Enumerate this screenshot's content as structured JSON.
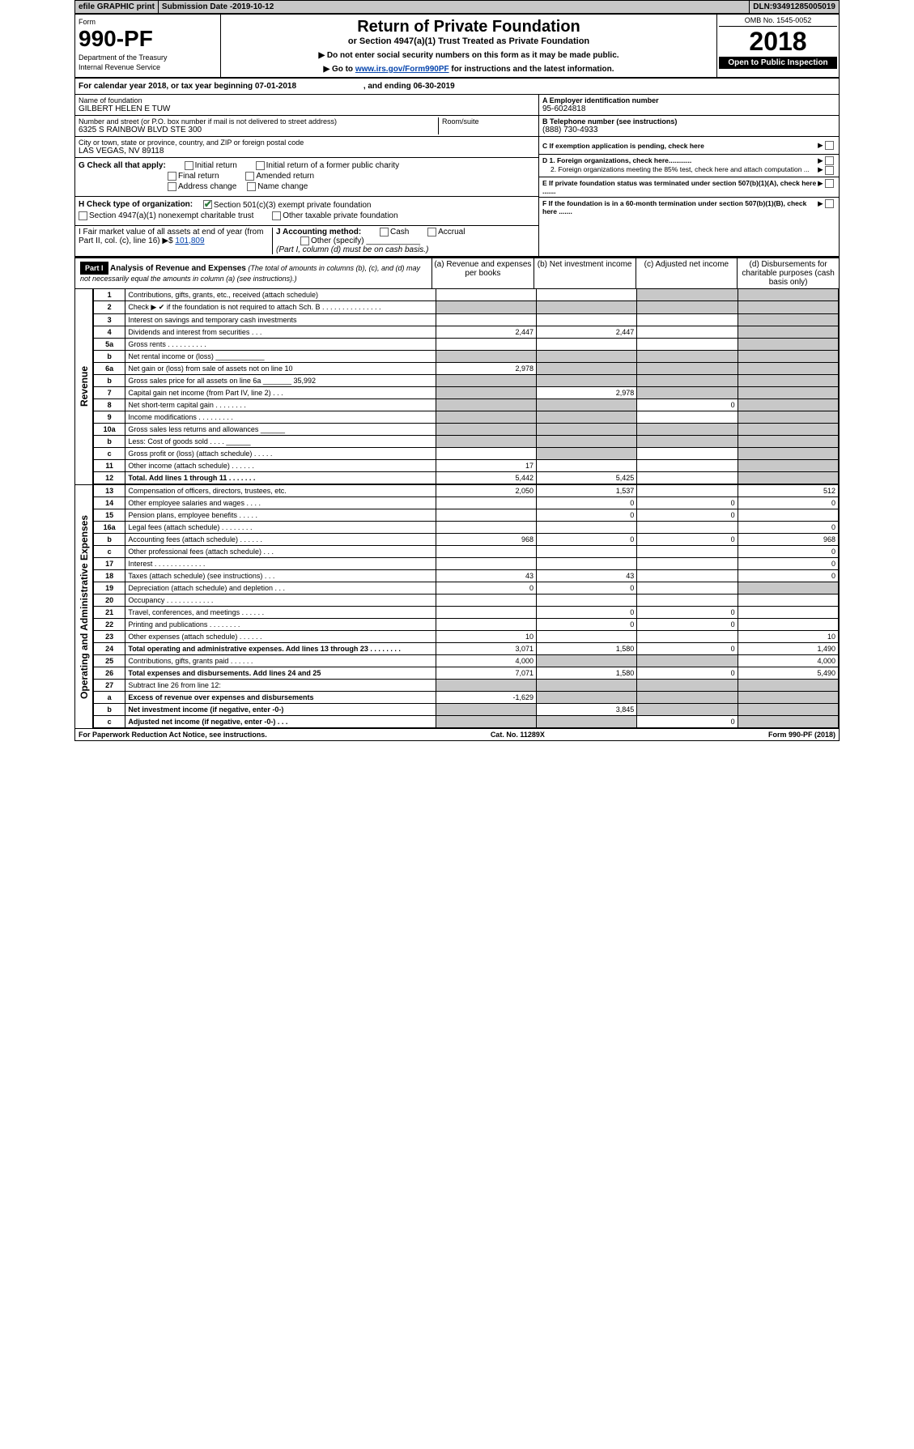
{
  "topbar": {
    "efile": "efile GRAPHIC print",
    "submission_label": "Submission Date - ",
    "submission_date": "2019-10-12",
    "dln_label": "DLN: ",
    "dln": "93491285005019"
  },
  "header": {
    "form_label": "Form",
    "form_number": "990-PF",
    "dept1": "Department of the Treasury",
    "dept2": "Internal Revenue Service",
    "title": "Return of Private Foundation",
    "subtitle": "or Section 4947(a)(1) Trust Treated as Private Foundation",
    "instr1": "▶ Do not enter social security numbers on this form as it may be made public.",
    "instr2_pre": "▶ Go to ",
    "instr2_link": "www.irs.gov/Form990PF",
    "instr2_post": " for instructions and the latest information.",
    "omb": "OMB No. 1545-0052",
    "year": "2018",
    "open": "Open to Public Inspection"
  },
  "calendar": {
    "text_pre": "For calendar year 2018, or tax year beginning ",
    "begin": "07-01-2018",
    "mid": " , and ending ",
    "end": "06-30-2019"
  },
  "org": {
    "name_label": "Name of foundation",
    "name": "GILBERT HELEN E TUW",
    "addr_label": "Number and street (or P.O. box number if mail is not delivered to street address)",
    "addr": "6325 S RAINBOW BLVD STE 300",
    "room_label": "Room/suite",
    "city_label": "City or town, state or province, country, and ZIP or foreign postal code",
    "city": "LAS VEGAS, NV  89118",
    "a_label": "A Employer identification number",
    "a_val": "95-6024818",
    "b_label": "B Telephone number (see instructions)",
    "b_val": "(888) 730-4933",
    "c_label": "C If exemption application is pending, check here",
    "d1_label": "D 1. Foreign organizations, check here............",
    "d2_label": "2. Foreign organizations meeting the 85% test, check here and attach computation ...",
    "e_label": "E  If private foundation status was terminated under section 507(b)(1)(A), check here .......",
    "f_label": "F  If the foundation is in a 60-month termination under section 507(b)(1)(B), check here .......",
    "g_label": "G Check all that apply:",
    "g_items": [
      "Initial return",
      "Initial return of a former public charity",
      "Final return",
      "Amended return",
      "Address change",
      "Name change"
    ],
    "h_label": "H Check type of organization:",
    "h1": "Section 501(c)(3) exempt private foundation",
    "h2": "Section 4947(a)(1) nonexempt charitable trust",
    "h3": "Other taxable private foundation",
    "i_label": "I Fair market value of all assets at end of year (from Part II, col. (c), line 16)",
    "i_prefix": "▶$ ",
    "i_val": "101,809",
    "j_label": "J Accounting method:",
    "j_cash": "Cash",
    "j_accrual": "Accrual",
    "j_other": "Other (specify)",
    "j_note": "(Part I, column (d) must be on cash basis.)"
  },
  "part1": {
    "label": "Part I",
    "title": "Analysis of Revenue and Expenses",
    "note": " (The total of amounts in columns (b), (c), and (d) may not necessarily equal the amounts in column (a) (see instructions).)",
    "cols": {
      "a": "(a)   Revenue and expenses per books",
      "b": "(b)   Net investment income",
      "c": "(c)   Adjusted net income",
      "d": "(d)   Disbursements for charitable purposes (cash basis only)"
    },
    "revenue_label": "Revenue",
    "expenses_label": "Operating and Administrative Expenses"
  },
  "rows": [
    {
      "n": "1",
      "desc": "Contributions, gifts, grants, etc., received (attach schedule)",
      "a": "",
      "b": "",
      "c": "",
      "d": "",
      "shade_c": true,
      "shade_d": true
    },
    {
      "n": "2",
      "desc": "Check ▶ ✔ if the foundation is not required to attach Sch. B   .   .   .   .   .   .   .   .   .   .   .   .   .   .   .",
      "a": "",
      "b": "",
      "c": "",
      "d": "",
      "shade_all": true
    },
    {
      "n": "3",
      "desc": "Interest on savings and temporary cash investments",
      "a": "",
      "b": "",
      "c": "",
      "d": "",
      "shade_d": true
    },
    {
      "n": "4",
      "desc": "Dividends and interest from securities   .   .   .",
      "a": "2,447",
      "b": "2,447",
      "c": "",
      "d": "",
      "shade_d": true
    },
    {
      "n": "5a",
      "desc": "Gross rents   .   .   .   .   .   .   .   .   .   .",
      "a": "",
      "b": "",
      "c": "",
      "d": "",
      "shade_d": true
    },
    {
      "n": "b",
      "desc": "Net rental income or (loss)  ____________",
      "a": "",
      "b": "",
      "c": "",
      "d": "",
      "shade_all": true
    },
    {
      "n": "6a",
      "desc": "Net gain or (loss) from sale of assets not on line 10",
      "a": "2,978",
      "b": "",
      "c": "",
      "d": "",
      "shade_b": true,
      "shade_c": true,
      "shade_d": true
    },
    {
      "n": "b",
      "desc": "Gross sales price for all assets on line 6a  _______ 35,992",
      "a": "",
      "b": "",
      "c": "",
      "d": "",
      "shade_all": true
    },
    {
      "n": "7",
      "desc": "Capital gain net income (from Part IV, line 2)   .   .   .",
      "a": "",
      "b": "2,978",
      "c": "",
      "d": "",
      "shade_a": true,
      "shade_c": true,
      "shade_d": true
    },
    {
      "n": "8",
      "desc": "Net short-term capital gain   .   .   .   .   .   .   .   .",
      "a": "",
      "b": "",
      "c": "0",
      "d": "",
      "shade_a": true,
      "shade_b": true,
      "shade_d": true
    },
    {
      "n": "9",
      "desc": "Income modifications   .   .   .   .   .   .   .   .   .",
      "a": "",
      "b": "",
      "c": "",
      "d": "",
      "shade_a": true,
      "shade_b": true,
      "shade_d": true
    },
    {
      "n": "10a",
      "desc": "Gross sales less returns and allowances  ______",
      "a": "",
      "b": "",
      "c": "",
      "d": "",
      "shade_all": true
    },
    {
      "n": "b",
      "desc": "Less: Cost of goods sold   .   .   .   .   ______",
      "a": "",
      "b": "",
      "c": "",
      "d": "",
      "shade_all": true
    },
    {
      "n": "c",
      "desc": "Gross profit or (loss) (attach schedule)   .   .   .   .   .",
      "a": "",
      "b": "",
      "c": "",
      "d": "",
      "shade_b": true,
      "shade_d": true
    },
    {
      "n": "11",
      "desc": "Other income (attach schedule)   .   .   .   .   .   .",
      "a": "17",
      "b": "",
      "c": "",
      "d": "",
      "shade_d": true
    },
    {
      "n": "12",
      "desc": "Total. Add lines 1 through 11   .   .   .   .   .   .   .",
      "a": "5,442",
      "b": "5,425",
      "c": "",
      "d": "",
      "shade_d": true,
      "bold": true
    },
    {
      "n": "13",
      "desc": "Compensation of officers, directors, trustees, etc.",
      "a": "2,050",
      "b": "1,537",
      "c": "",
      "d": "512"
    },
    {
      "n": "14",
      "desc": "Other employee salaries and wages   .   .   .   .",
      "a": "",
      "b": "0",
      "c": "0",
      "d": "0"
    },
    {
      "n": "15",
      "desc": "Pension plans, employee benefits   .   .   .   .   .",
      "a": "",
      "b": "0",
      "c": "0",
      "d": ""
    },
    {
      "n": "16a",
      "desc": "Legal fees (attach schedule)   .   .   .   .   .   .   .   .",
      "a": "",
      "b": "",
      "c": "",
      "d": "0"
    },
    {
      "n": "b",
      "desc": "Accounting fees (attach schedule)   .   .   .   .   .   .",
      "a": "968",
      "b": "0",
      "c": "0",
      "d": "968"
    },
    {
      "n": "c",
      "desc": "Other professional fees (attach schedule)   .   .   .",
      "a": "",
      "b": "",
      "c": "",
      "d": "0"
    },
    {
      "n": "17",
      "desc": "Interest   .   .   .   .   .   .   .   .   .   .   .   .   .",
      "a": "",
      "b": "",
      "c": "",
      "d": "0"
    },
    {
      "n": "18",
      "desc": "Taxes (attach schedule) (see instructions)   .   .   .",
      "a": "43",
      "b": "43",
      "c": "",
      "d": "0"
    },
    {
      "n": "19",
      "desc": "Depreciation (attach schedule) and depletion   .   .   .",
      "a": "0",
      "b": "0",
      "c": "",
      "d": "",
      "shade_d": true
    },
    {
      "n": "20",
      "desc": "Occupancy   .   .   .   .   .   .   .   .   .   .   .   .",
      "a": "",
      "b": "",
      "c": "",
      "d": ""
    },
    {
      "n": "21",
      "desc": "Travel, conferences, and meetings   .   .   .   .   .   .",
      "a": "",
      "b": "0",
      "c": "0",
      "d": ""
    },
    {
      "n": "22",
      "desc": "Printing and publications   .   .   .   .   .   .   .   .",
      "a": "",
      "b": "0",
      "c": "0",
      "d": ""
    },
    {
      "n": "23",
      "desc": "Other expenses (attach schedule)   .   .   .   .   .   .",
      "a": "10",
      "b": "",
      "c": "",
      "d": "10"
    },
    {
      "n": "24",
      "desc": "Total operating and administrative expenses. Add lines 13 through 23   .   .   .   .   .   .   .   .",
      "a": "3,071",
      "b": "1,580",
      "c": "0",
      "d": "1,490",
      "bold": true
    },
    {
      "n": "25",
      "desc": "Contributions, gifts, grants paid   .   .   .   .   .   .",
      "a": "4,000",
      "b": "",
      "c": "",
      "d": "4,000",
      "shade_b": true,
      "shade_c": true
    },
    {
      "n": "26",
      "desc": "Total expenses and disbursements. Add lines 24 and 25",
      "a": "7,071",
      "b": "1,580",
      "c": "0",
      "d": "5,490",
      "bold": true
    },
    {
      "n": "27",
      "desc": "Subtract line 26 from line 12:",
      "a": "",
      "b": "",
      "c": "",
      "d": "",
      "shade_all": true
    },
    {
      "n": "a",
      "desc": "Excess of revenue over expenses and disbursements",
      "a": "-1,629",
      "b": "",
      "c": "",
      "d": "",
      "shade_b": true,
      "shade_c": true,
      "shade_d": true,
      "bold": true
    },
    {
      "n": "b",
      "desc": "Net investment income (if negative, enter -0-)",
      "a": "",
      "b": "3,845",
      "c": "",
      "d": "",
      "shade_a": true,
      "shade_c": true,
      "shade_d": true,
      "bold": true
    },
    {
      "n": "c",
      "desc": "Adjusted net income (if negative, enter -0-)   .   .   .",
      "a": "",
      "b": "",
      "c": "0",
      "d": "",
      "shade_a": true,
      "shade_b": true,
      "shade_d": true,
      "bold": true
    }
  ],
  "footer": {
    "left": "For Paperwork Reduction Act Notice, see instructions.",
    "center": "Cat. No. 11289X",
    "right": "Form 990-PF (2018)"
  }
}
